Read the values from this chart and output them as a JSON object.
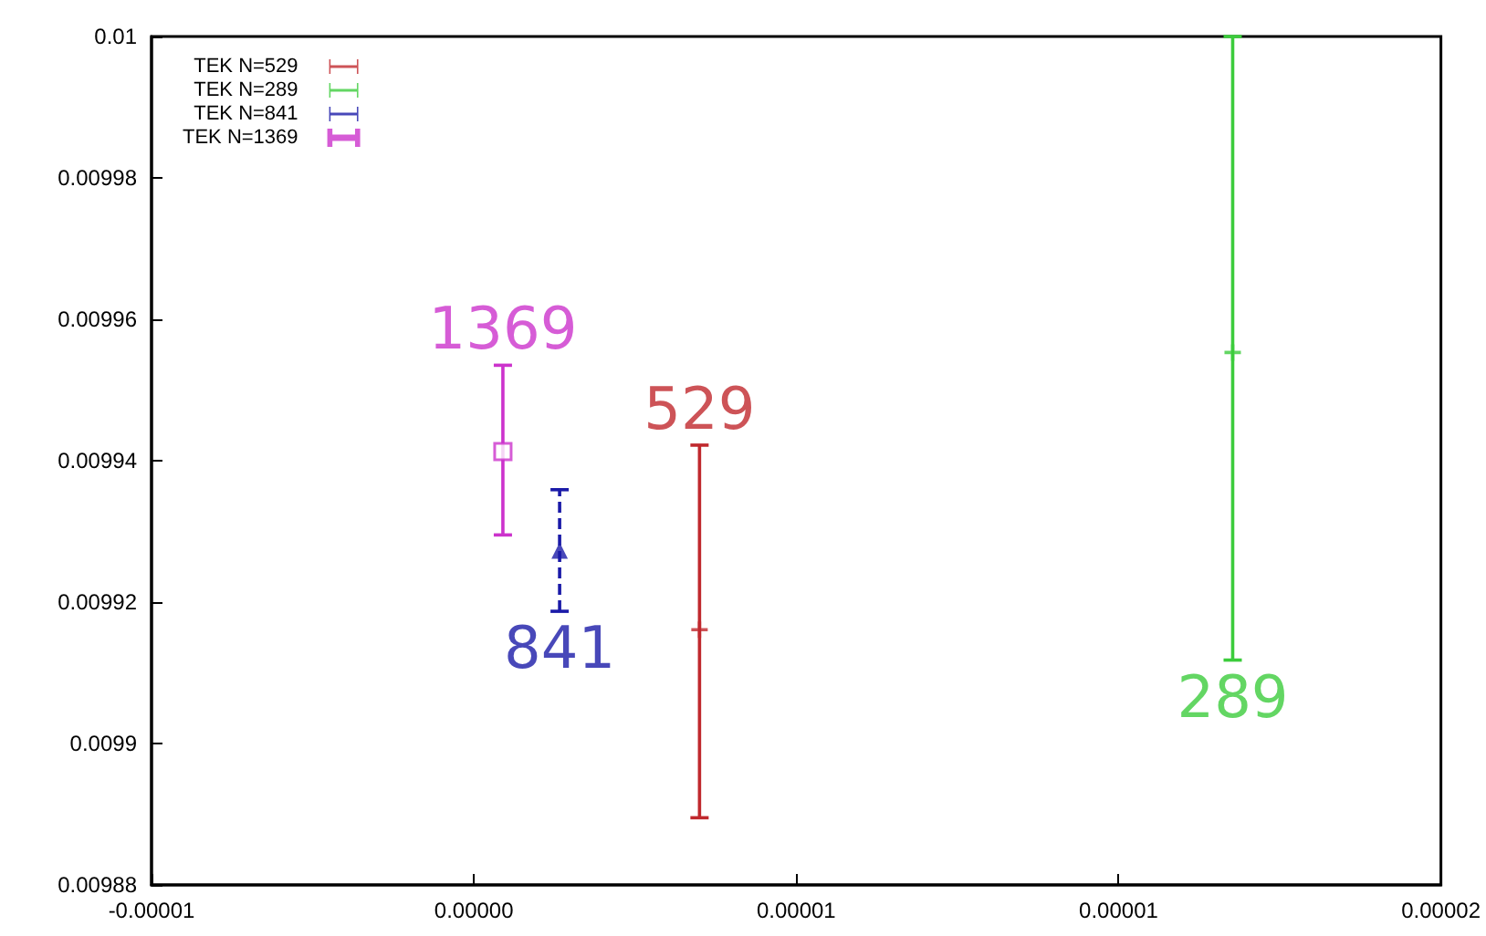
{
  "chart_data": {
    "type": "scatter",
    "series": [
      {
        "name": "TEK N=529",
        "color": "#c0282d",
        "marker": "cross",
        "x": [
          3.5e-06
        ],
        "values": [
          0.0099161
        ],
        "errors": [
          [
            0.0098895,
            0.0099422
          ]
        ]
      },
      {
        "name": "TEK N=289",
        "color": "#3ccc3c",
        "marker": "cross",
        "x": [
          1.177e-05
        ],
        "values": [
          0.0099553
        ],
        "errors": [
          [
            0.0099118,
            0.01
          ]
        ]
      },
      {
        "name": "TEK N=841",
        "color": "#1a1aa8",
        "marker": "triangle",
        "line_style": "dashed",
        "x": [
          1.33e-06
        ],
        "values": [
          0.0099273
        ],
        "errors": [
          [
            0.0099187,
            0.0099359
          ]
        ]
      },
      {
        "name": "TEK N=1369",
        "color": "#cc33cc",
        "marker": "square",
        "x": [
          4.5e-07
        ],
        "values": [
          0.0099413
        ],
        "errors": [
          [
            0.0099295,
            0.0099535
          ]
        ]
      }
    ],
    "annotations": [
      {
        "text": "529",
        "x": 3.5e-06,
        "y": 0.0099422
      },
      {
        "text": "289",
        "x": 1.177e-05,
        "y": 0.0099118
      },
      {
        "text": "841",
        "x": 1.33e-06,
        "y": 0.0099187
      },
      {
        "text": "1369",
        "x": 4.5e-07,
        "y": 0.0099535
      }
    ],
    "xlim": [
      -5e-06,
      1.5e-05
    ],
    "xticks": [
      {
        "value": -5e-06,
        "label": "-0.00001"
      },
      {
        "value": 0,
        "label": "0.00000"
      },
      {
        "value": 5e-06,
        "label": "0.00001"
      },
      {
        "value": 1e-05,
        "label": "0.00001"
      },
      {
        "value": 1.5e-05,
        "label": "0.00002"
      }
    ],
    "ylim": [
      0.00988,
      0.01
    ],
    "yticks": [
      0.00988,
      0.0099,
      0.00992,
      0.00994,
      0.00996,
      0.00998,
      0.01
    ],
    "legend": "top left",
    "grid": false
  }
}
